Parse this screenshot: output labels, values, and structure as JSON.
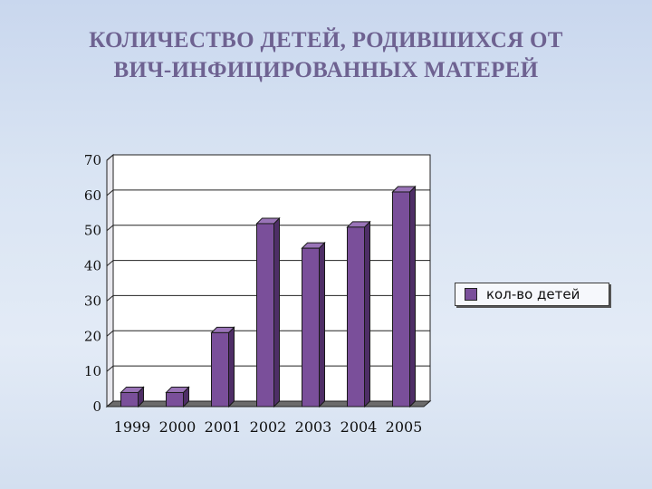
{
  "title": {
    "line1": "КОЛИЧЕСТВО ДЕТЕЙ, РОДИВШИХСЯ ОТ",
    "line2": "ВИЧ-ИНФИЦИРОВАННЫХ МАТЕРЕЙ"
  },
  "colors": {
    "bar_front": "#7a4f9a",
    "bar_top": "#9a74b8",
    "bar_side": "#4e2e66",
    "title": "#6e6291"
  },
  "chart_data": {
    "type": "bar",
    "title": "КОЛИЧЕСТВО ДЕТЕЙ, РОДИВШИХСЯ ОТ ВИЧ-ИНФИЦИРОВАННЫХ МАТЕРЕЙ",
    "categories": [
      "1999",
      "2000",
      "2001",
      "2002",
      "2003",
      "2004",
      "2005"
    ],
    "series": [
      {
        "name": "кол-во детей",
        "values": [
          4,
          4,
          21,
          52,
          45,
          51,
          61
        ]
      }
    ],
    "yticks": [
      "0",
      "10",
      "20",
      "30",
      "40",
      "50",
      "60",
      "70"
    ],
    "ylim": [
      0,
      70
    ],
    "grid": true,
    "legend": "right"
  }
}
